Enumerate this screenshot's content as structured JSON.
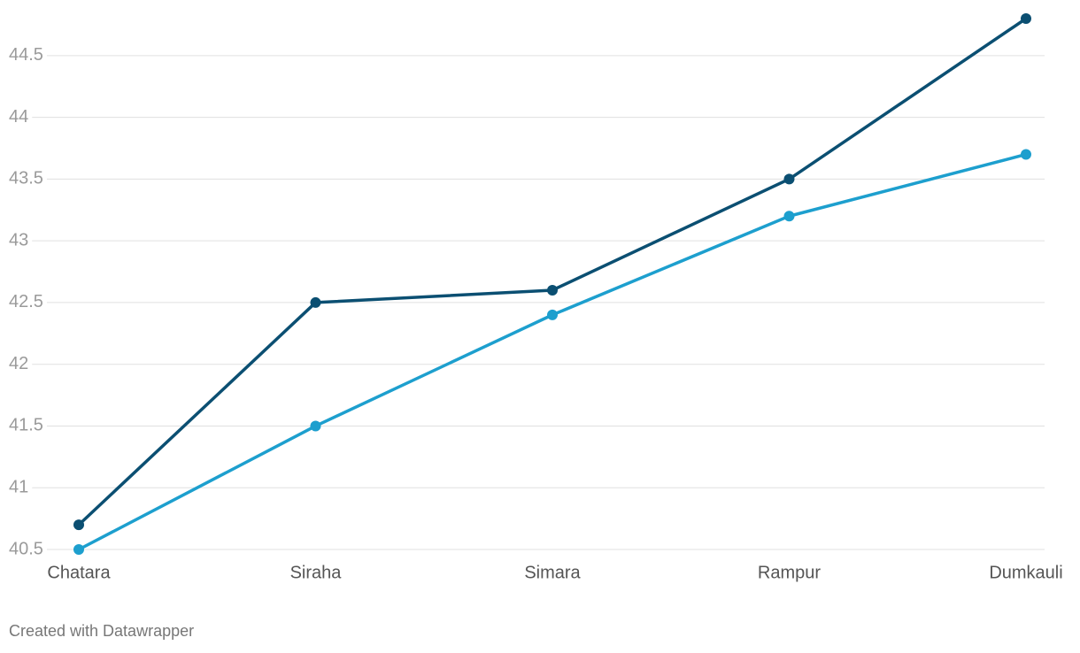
{
  "chart_data": {
    "type": "line",
    "categories": [
      "Chatara",
      "Siraha",
      "Simara",
      "Rampur",
      "Dumkauli"
    ],
    "series": [
      {
        "color": "#0b4f72",
        "values": [
          40.7,
          42.5,
          42.6,
          43.5,
          44.8
        ]
      },
      {
        "color": "#1d9fce",
        "values": [
          40.5,
          41.5,
          42.4,
          43.2,
          43.7
        ]
      }
    ],
    "ylim": [
      40.5,
      44.8
    ],
    "yticks": [
      40.5,
      41,
      41.5,
      42,
      42.5,
      43,
      43.5,
      44,
      44.5
    ],
    "grid": true
  },
  "footer": "Created with Datawrapper"
}
